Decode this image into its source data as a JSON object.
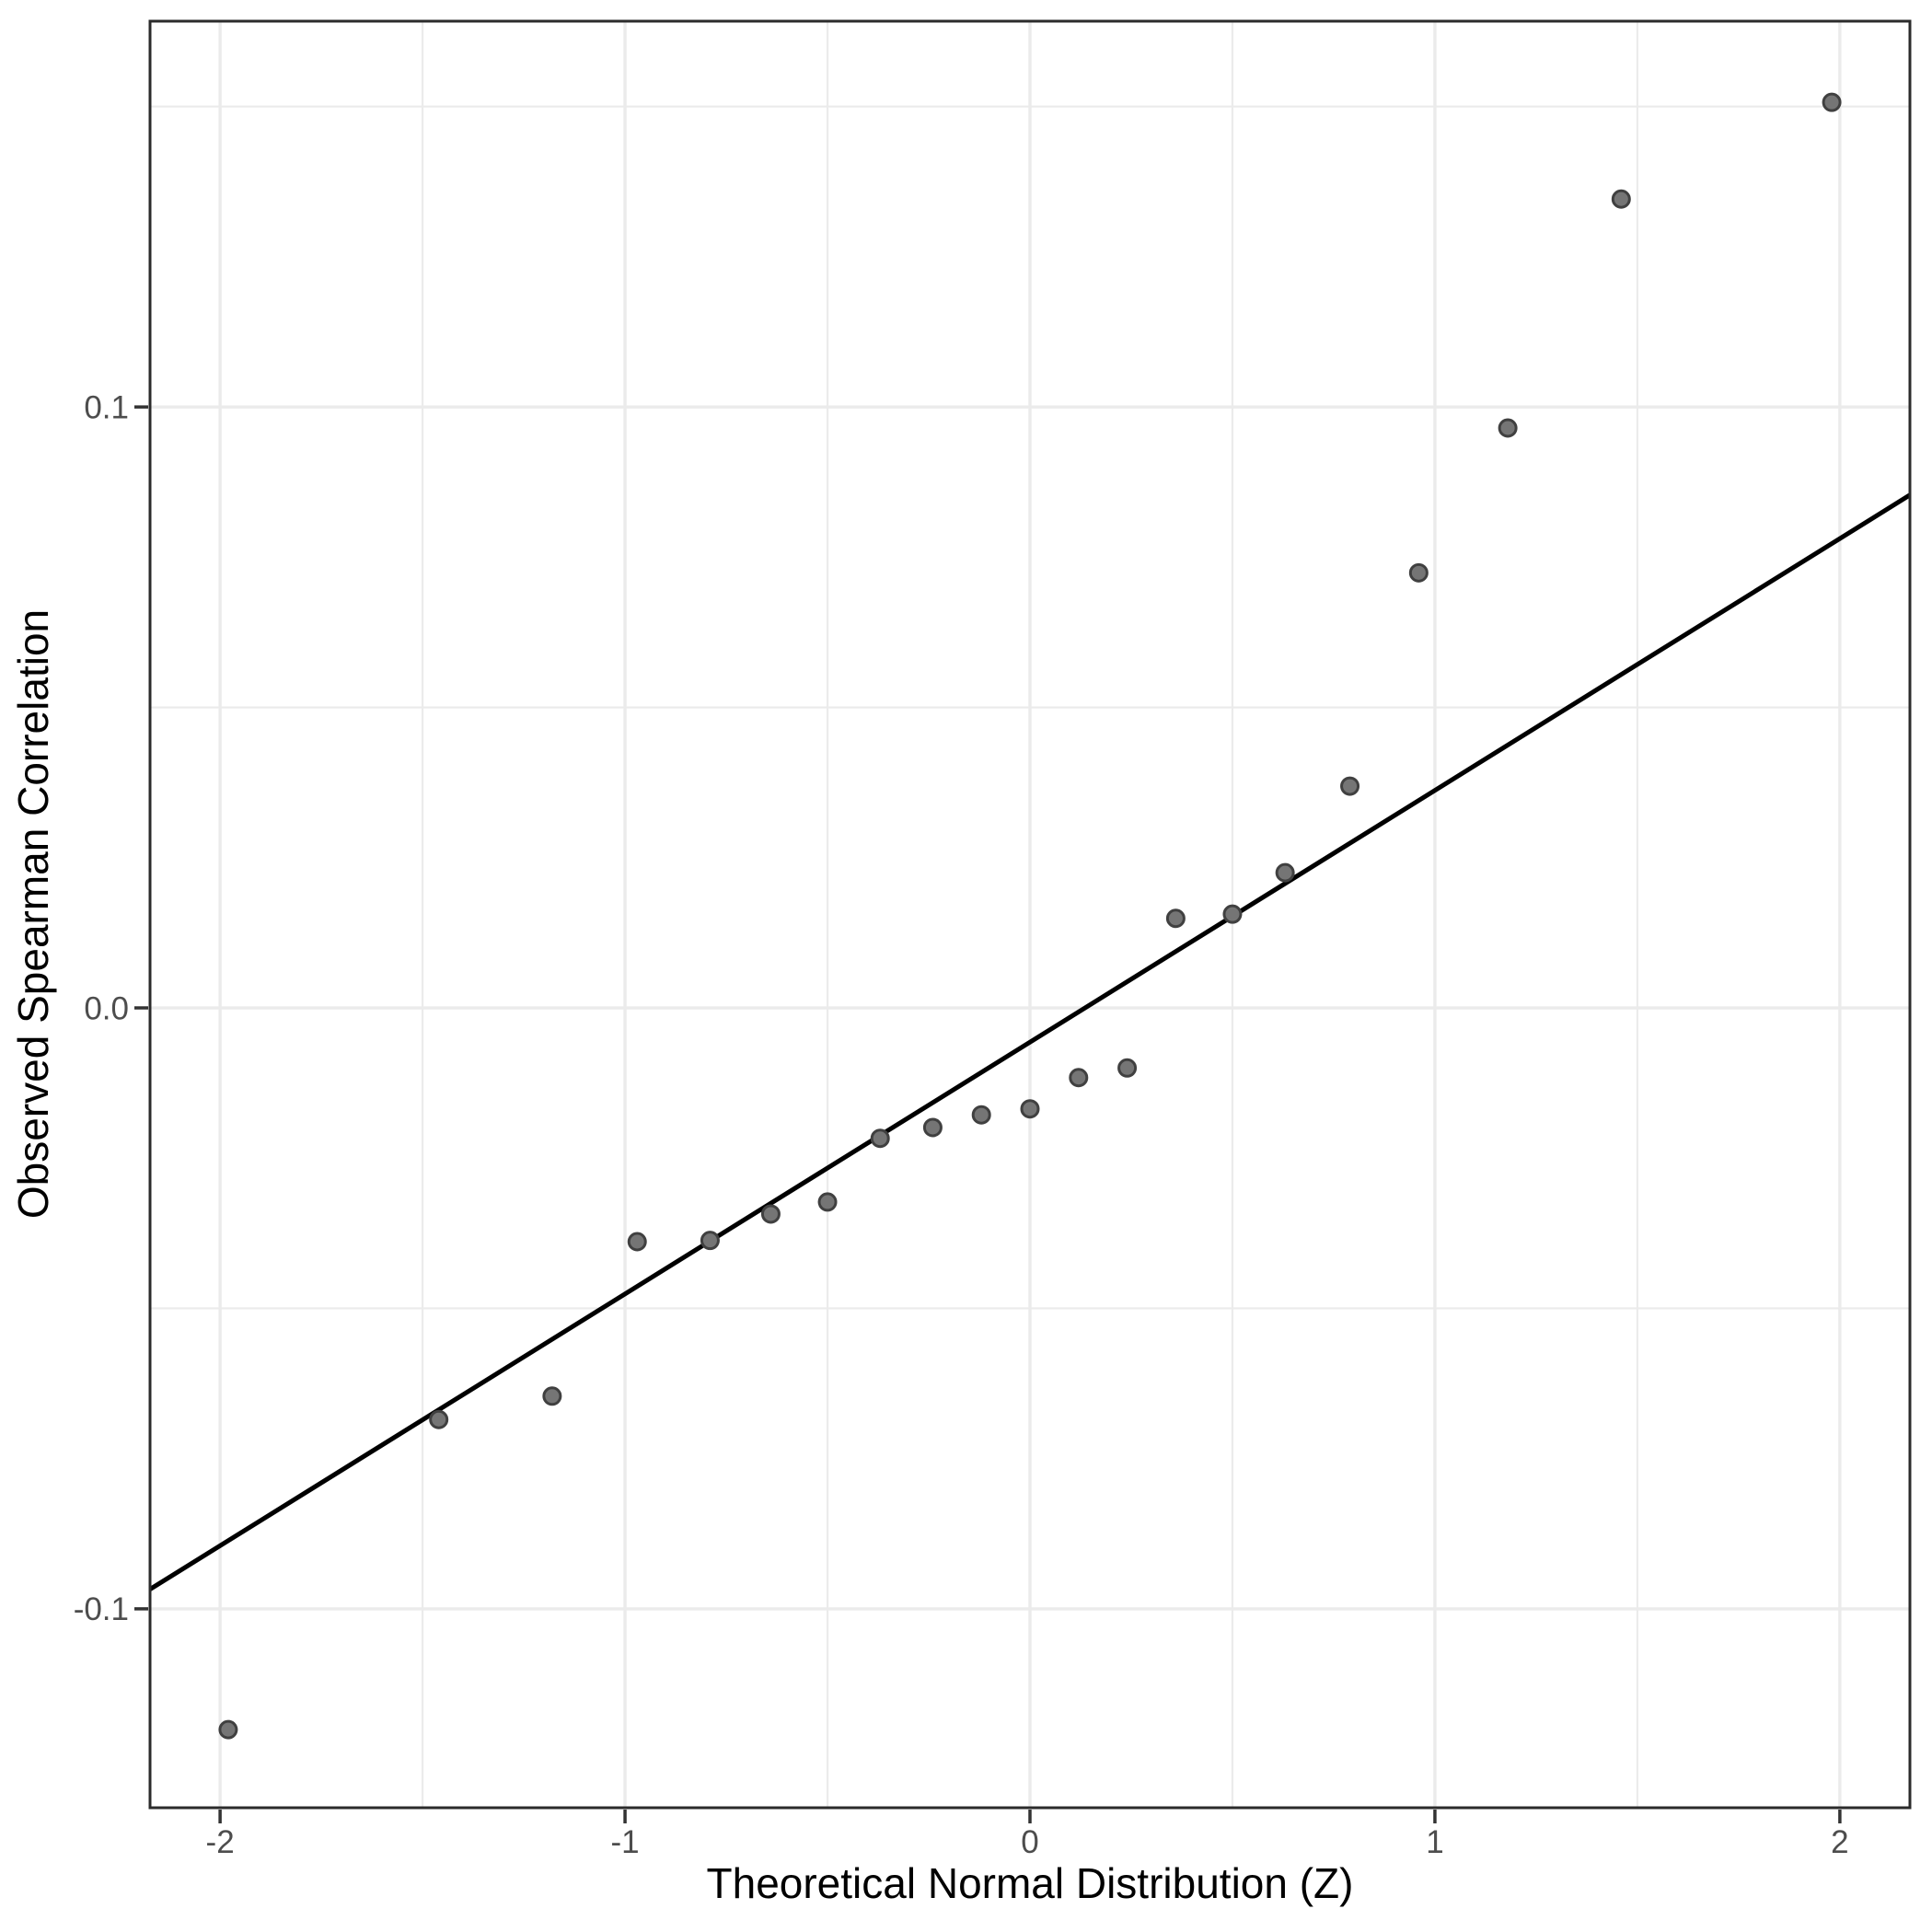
{
  "figure": {
    "kind": "qq-plot",
    "background": "#ffffff"
  },
  "chart_data": {
    "type": "scatter",
    "title": "",
    "xlabel": "Theoretical Normal Distribution (Z)",
    "ylabel": "Observed Spearman Correlation",
    "xlim": [
      -2.173,
      2.173
    ],
    "ylim": [
      -0.1331,
      0.1642
    ],
    "grid": true,
    "legend_position": "none",
    "x_major_ticks": [
      -2,
      -1,
      0,
      1,
      2
    ],
    "x_major_tick_labels": [
      "-2",
      "-1",
      "0",
      "1",
      "2"
    ],
    "x_minor_ticks": [
      -1.5,
      -0.5,
      0.5,
      1.5
    ],
    "y_major_ticks": [
      0.1,
      0.0,
      -0.1
    ],
    "y_major_tick_labels": [
      "0.1",
      "0.0",
      "-0.1"
    ],
    "y_minor_ticks": [
      0.15,
      0.05,
      -0.05
    ],
    "points": [
      {
        "z": -1.98,
        "obs": -0.1201
      },
      {
        "z": -1.46,
        "obs": -0.0685
      },
      {
        "z": -1.18,
        "obs": -0.0646
      },
      {
        "z": -0.97,
        "obs": -0.0389
      },
      {
        "z": -0.79,
        "obs": -0.0387
      },
      {
        "z": -0.64,
        "obs": -0.0343
      },
      {
        "z": -0.5,
        "obs": -0.0323
      },
      {
        "z": -0.37,
        "obs": -0.0217
      },
      {
        "z": -0.24,
        "obs": -0.0199
      },
      {
        "z": -0.12,
        "obs": -0.0178
      },
      {
        "z": 0.0,
        "obs": -0.0168
      },
      {
        "z": 0.12,
        "obs": -0.0116
      },
      {
        "z": 0.24,
        "obs": -0.01
      },
      {
        "z": 0.36,
        "obs": 0.0149
      },
      {
        "z": 0.5,
        "obs": 0.0156
      },
      {
        "z": 0.63,
        "obs": 0.0225
      },
      {
        "z": 0.79,
        "obs": 0.0369
      },
      {
        "z": 0.96,
        "obs": 0.0724
      },
      {
        "z": 1.18,
        "obs": 0.0965
      },
      {
        "z": 1.46,
        "obs": 0.1346
      },
      {
        "z": 1.98,
        "obs": 0.1507
      }
    ],
    "reference_line": {
      "slope": 0.0419,
      "intercept": -0.0057,
      "z_start": -2.173,
      "z_end": 2.173
    }
  },
  "style": {
    "panel_background": "#ffffff",
    "grid_color": "#ebebeb",
    "border_color": "#2b2b2b",
    "tick_color": "#333333",
    "tick_label_color": "#4d4d4d",
    "axis_title_color": "#000000",
    "point_fill": "#757575",
    "point_stroke": "#404040",
    "line_color": "#000000"
  }
}
